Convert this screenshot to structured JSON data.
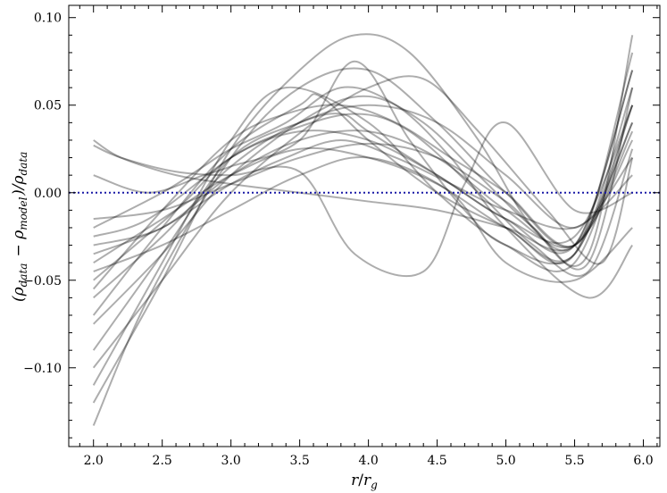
{
  "chart_data": {
    "type": "line",
    "title": "",
    "xlabel": "r/r_g",
    "ylabel": "(ρ_data − ρ_model)/ρ_data",
    "xlim": [
      1.82,
      6.12
    ],
    "ylim": [
      -0.145,
      0.107
    ],
    "x_ticks": [
      {
        "value": 2.0,
        "label": "2.0"
      },
      {
        "value": 2.5,
        "label": "2.5"
      },
      {
        "value": 3.0,
        "label": "3.0"
      },
      {
        "value": 3.5,
        "label": "3.5"
      },
      {
        "value": 4.0,
        "label": "4.0"
      },
      {
        "value": 4.5,
        "label": "4.5"
      },
      {
        "value": 5.0,
        "label": "5.0"
      },
      {
        "value": 5.5,
        "label": "5.5"
      },
      {
        "value": 6.0,
        "label": "6.0"
      }
    ],
    "y_ticks": [
      {
        "value": 0.1,
        "label": "0.10"
      },
      {
        "value": 0.05,
        "label": "0.05"
      },
      {
        "value": 0.0,
        "label": "0.00"
      },
      {
        "value": -0.05,
        "label": "−0.05"
      },
      {
        "value": -0.1,
        "label": "−0.10"
      }
    ],
    "grid": false,
    "reference_line": {
      "y": 0.0,
      "style": "dotted",
      "color": "#1a1aa6"
    },
    "series_color": "#000000",
    "series_opacity": 0.32,
    "series": [
      {
        "x": [
          2.0,
          2.5,
          3.0,
          3.5,
          3.65,
          4.0,
          4.5,
          5.0,
          5.5,
          5.92
        ],
        "y": [
          -0.07,
          -0.02,
          0.025,
          0.05,
          0.055,
          0.03,
          0.0,
          -0.02,
          -0.035,
          0.08
        ]
      },
      {
        "x": [
          2.0,
          2.5,
          3.0,
          3.5,
          3.8,
          4.0,
          4.5,
          5.0,
          5.5,
          5.92
        ],
        "y": [
          -0.09,
          -0.035,
          0.02,
          0.04,
          0.045,
          0.035,
          0.01,
          -0.015,
          -0.03,
          0.07
        ]
      },
      {
        "x": [
          2.0,
          2.5,
          3.0,
          3.4,
          4.0,
          4.5,
          5.0,
          5.5,
          5.92
        ],
        "y": [
          -0.11,
          -0.04,
          0.03,
          0.06,
          0.04,
          0.0,
          -0.03,
          -0.04,
          0.05
        ]
      },
      {
        "x": [
          2.0,
          2.4,
          3.0,
          3.5,
          4.0,
          4.5,
          5.0,
          5.5,
          5.92
        ],
        "y": [
          -0.133,
          -0.06,
          0.02,
          0.06,
          0.07,
          0.04,
          0.0,
          -0.03,
          0.04
        ]
      },
      {
        "x": [
          2.0,
          2.5,
          3.0,
          3.5,
          3.9,
          4.3,
          4.8,
          5.2,
          5.6,
          5.92
        ],
        "y": [
          -0.12,
          -0.05,
          0.025,
          0.07,
          0.09,
          0.08,
          0.03,
          -0.02,
          -0.035,
          0.09
        ]
      },
      {
        "x": [
          2.0,
          2.5,
          3.0,
          3.5,
          4.0,
          4.5,
          5.0,
          5.5,
          5.92
        ],
        "y": [
          -0.04,
          -0.015,
          0.01,
          0.025,
          0.02,
          0.005,
          -0.02,
          -0.035,
          0.06
        ]
      },
      {
        "x": [
          2.0,
          2.5,
          3.0,
          3.5,
          4.0,
          4.5,
          5.0,
          5.5,
          5.92
        ],
        "y": [
          -0.03,
          -0.02,
          0.01,
          0.03,
          0.035,
          0.02,
          -0.01,
          -0.03,
          0.03
        ]
      },
      {
        "x": [
          2.0,
          2.6,
          3.0,
          3.5,
          4.0,
          4.5,
          5.0,
          5.5,
          5.92
        ],
        "y": [
          -0.05,
          -0.01,
          0.02,
          0.035,
          0.03,
          0.01,
          -0.015,
          -0.025,
          0.05
        ]
      },
      {
        "x": [
          2.0,
          2.5,
          3.0,
          3.5,
          4.0,
          4.5,
          5.0,
          5.5,
          5.92
        ],
        "y": [
          -0.06,
          -0.025,
          0.015,
          0.04,
          0.05,
          0.04,
          0.01,
          -0.02,
          0.02
        ]
      },
      {
        "x": [
          2.0,
          2.5,
          3.0,
          3.5,
          4.0,
          4.5,
          5.0,
          5.5,
          5.92
        ],
        "y": [
          -0.015,
          -0.01,
          0.005,
          0.02,
          0.028,
          0.02,
          -0.005,
          -0.03,
          0.07
        ]
      },
      {
        "x": [
          2.0,
          2.2,
          2.6,
          3.0,
          3.5,
          4.0,
          4.5,
          5.0,
          5.5,
          5.92
        ],
        "y": [
          0.03,
          0.02,
          0.01,
          0.005,
          0.0,
          -0.005,
          -0.01,
          -0.02,
          -0.03,
          0.04
        ]
      },
      {
        "x": [
          2.0,
          2.2,
          2.6,
          3.0,
          3.5,
          3.9,
          4.4,
          4.7,
          5.0,
          5.5,
          5.92
        ],
        "y": [
          0.027,
          0.02,
          0.012,
          0.01,
          0.012,
          -0.035,
          -0.045,
          0.005,
          0.04,
          -0.01,
          0.0
        ]
      },
      {
        "x": [
          2.0,
          2.4,
          2.8,
          3.0,
          3.5,
          3.9,
          4.3,
          4.7,
          5.0,
          5.5,
          5.92
        ],
        "y": [
          0.01,
          0.0,
          0.01,
          0.015,
          0.03,
          0.075,
          0.03,
          -0.01,
          -0.03,
          -0.035,
          0.05
        ]
      },
      {
        "x": [
          2.0,
          2.5,
          2.8,
          3.0,
          3.4,
          3.8,
          4.2,
          4.6,
          5.0,
          5.6,
          5.92
        ],
        "y": [
          -0.02,
          0.0,
          0.015,
          0.025,
          0.04,
          0.06,
          0.05,
          0.02,
          -0.02,
          -0.06,
          -0.03
        ]
      },
      {
        "x": [
          2.0,
          2.5,
          3.0,
          3.4,
          3.8,
          4.2,
          4.6,
          5.0,
          5.5,
          5.92
        ],
        "y": [
          -0.035,
          -0.02,
          0.005,
          0.02,
          0.03,
          0.02,
          0.005,
          -0.01,
          -0.02,
          0.01
        ]
      },
      {
        "x": [
          2.0,
          2.5,
          3.0,
          3.6,
          4.0,
          4.4,
          4.8,
          5.2,
          5.6,
          5.92
        ],
        "y": [
          -0.075,
          -0.035,
          0.01,
          0.045,
          0.055,
          0.04,
          0.01,
          -0.02,
          -0.04,
          0.06
        ]
      },
      {
        "x": [
          2.0,
          2.5,
          3.0,
          3.5,
          4.0,
          4.6,
          5.0,
          5.5,
          5.92
        ],
        "y": [
          -0.045,
          -0.03,
          -0.01,
          0.01,
          0.02,
          0.0,
          -0.04,
          -0.05,
          -0.02
        ]
      },
      {
        "x": [
          2.0,
          2.5,
          3.0,
          3.6,
          4.0,
          4.4,
          4.8,
          5.3,
          5.7,
          5.92
        ],
        "y": [
          -0.1,
          -0.05,
          0.0,
          0.04,
          0.06,
          0.065,
          0.035,
          -0.01,
          -0.04,
          0.02
        ]
      },
      {
        "x": [
          2.0,
          2.5,
          3.0,
          3.4,
          3.8,
          4.2,
          4.6,
          5.0,
          5.5,
          5.92
        ],
        "y": [
          -0.055,
          -0.01,
          0.03,
          0.045,
          0.05,
          0.04,
          0.02,
          0.0,
          -0.03,
          0.035
        ]
      },
      {
        "x": [
          2.0,
          2.4,
          3.0,
          3.4,
          3.9,
          4.3,
          4.8,
          5.2,
          5.6,
          5.92
        ],
        "y": [
          -0.025,
          -0.015,
          0.02,
          0.035,
          0.045,
          0.035,
          0.0,
          -0.03,
          -0.045,
          0.025
        ]
      }
    ]
  }
}
